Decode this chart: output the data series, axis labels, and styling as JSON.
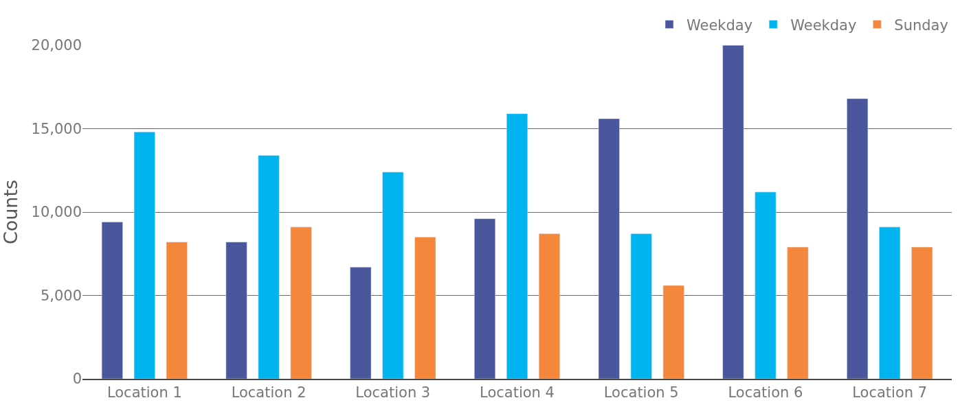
{
  "chart_data": {
    "type": "bar",
    "ylabel": "Counts",
    "categories": [
      "Location 1",
      "Location 2",
      "Location 3",
      "Location 4",
      "Location 5",
      "Location 6",
      "Location 7"
    ],
    "series": [
      {
        "name": "Weekday",
        "color": "#4b579c",
        "values": [
          9400,
          8200,
          6700,
          9600,
          15600,
          20000,
          16800
        ]
      },
      {
        "name": "Weekday",
        "color": "#00b5ef",
        "values": [
          14800,
          13400,
          12400,
          15900,
          8700,
          11200,
          9100
        ]
      },
      {
        "name": "Sunday",
        "color": "#f5873d",
        "values": [
          8200,
          9100,
          8500,
          8700,
          5600,
          7900,
          7900
        ]
      }
    ],
    "ylim": [
      0,
      20000
    ],
    "yticks": [
      {
        "value": 0,
        "label": "0"
      },
      {
        "value": 5000,
        "label": "5,000"
      },
      {
        "value": 10000,
        "label": "10,000"
      },
      {
        "value": 15000,
        "label": "15,000"
      },
      {
        "value": 20000,
        "label": "20,000"
      }
    ],
    "grid": "y",
    "legend": "top right"
  }
}
